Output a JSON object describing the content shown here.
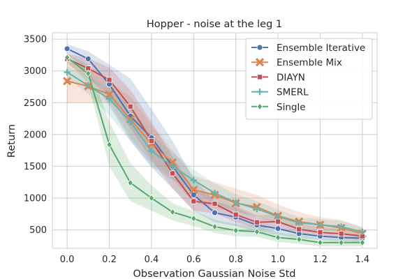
{
  "chart_data": {
    "type": "line",
    "title": "Hopper - noise at the leg 1",
    "xlabel": "Observation Gaussian Noise Std",
    "ylabel": "Return",
    "xlim": [
      -0.07,
      1.47
    ],
    "ylim": [
      210,
      3600
    ],
    "xticks": [
      0.0,
      0.2,
      0.4,
      0.6,
      0.8,
      1.0,
      1.2,
      1.4
    ],
    "xtick_labels": [
      "0.0",
      "0.2",
      "0.4",
      "0.6",
      "0.8",
      "1.0",
      "1.2",
      "1.4"
    ],
    "yticks": [
      500,
      1000,
      1500,
      2000,
      2500,
      3000,
      3500
    ],
    "ytick_labels": [
      "500",
      "1000",
      "1500",
      "2000",
      "2500",
      "3000",
      "3500"
    ],
    "grid": true,
    "legend_position": "top-right",
    "x": [
      0.0,
      0.1,
      0.2,
      0.3,
      0.4,
      0.5,
      0.6,
      0.7,
      0.8,
      0.9,
      1.0,
      1.1,
      1.2,
      1.3,
      1.4
    ],
    "series": [
      {
        "name": "Ensemble Iterative",
        "color": "#4c72b0",
        "marker": "circle",
        "values": [
          3350,
          3190,
          2790,
          2290,
          1950,
          1500,
          1050,
          770,
          700,
          575,
          520,
          440,
          400,
          380,
          370
        ],
        "lower": [
          3280,
          2950,
          2450,
          1900,
          1480,
          1150,
          800,
          620,
          560,
          470,
          420,
          370,
          340,
          320,
          310
        ],
        "upper": [
          3420,
          3310,
          3100,
          2880,
          2400,
          1900,
          1300,
          950,
          850,
          700,
          630,
          540,
          480,
          450,
          430
        ]
      },
      {
        "name": "Ensemble Mix",
        "color": "#dd8452",
        "marker": "x",
        "values": [
          2840,
          2760,
          2630,
          2240,
          1850,
          1560,
          1130,
          1050,
          920,
          860,
          720,
          630,
          580,
          530,
          440
        ],
        "lower": [
          2500,
          2500,
          2500,
          1950,
          1550,
          1300,
          930,
          850,
          780,
          700,
          620,
          540,
          490,
          450,
          380
        ],
        "upper": [
          3150,
          3050,
          2820,
          2600,
          2150,
          1750,
          1350,
          1250,
          1150,
          1050,
          900,
          780,
          700,
          660,
          540
        ]
      },
      {
        "name": "DIAYN",
        "color": "#c44e52",
        "marker": "square",
        "values": [
          3190,
          3040,
          2860,
          2440,
          1900,
          1390,
          950,
          910,
          740,
          620,
          630,
          510,
          460,
          440,
          400
        ],
        "lower": [
          3110,
          2880,
          2600,
          2100,
          1600,
          1150,
          800,
          760,
          620,
          520,
          520,
          430,
          390,
          370,
          340
        ],
        "upper": [
          3270,
          3200,
          3050,
          2700,
          2200,
          1650,
          1150,
          1050,
          880,
          730,
          740,
          600,
          540,
          520,
          470
        ]
      },
      {
        "name": "SMERL",
        "color": "#64b5b0",
        "marker": "plus",
        "values": [
          2980,
          2770,
          2560,
          2200,
          1740,
          1500,
          1280,
          1080,
          930,
          830,
          710,
          610,
          580,
          550,
          470
        ],
        "lower": [
          2880,
          2640,
          2300,
          1900,
          1500,
          1280,
          1100,
          920,
          800,
          710,
          600,
          520,
          490,
          470,
          400
        ],
        "upper": [
          3080,
          2900,
          2750,
          2450,
          2000,
          1720,
          1450,
          1230,
          1060,
          950,
          820,
          700,
          670,
          640,
          540
        ]
      },
      {
        "name": "Single",
        "color": "#55a868",
        "marker": "diamond",
        "values": [
          3210,
          2960,
          1840,
          1240,
          1000,
          780,
          680,
          550,
          490,
          470,
          380,
          350,
          300,
          300,
          300
        ],
        "lower": [
          3150,
          2800,
          1500,
          950,
          800,
          650,
          560,
          450,
          400,
          390,
          310,
          280,
          240,
          240,
          240
        ],
        "upper": [
          3270,
          3100,
          2200,
          1550,
          1200,
          920,
          800,
          660,
          590,
          560,
          460,
          420,
          370,
          370,
          370
        ]
      }
    ]
  }
}
